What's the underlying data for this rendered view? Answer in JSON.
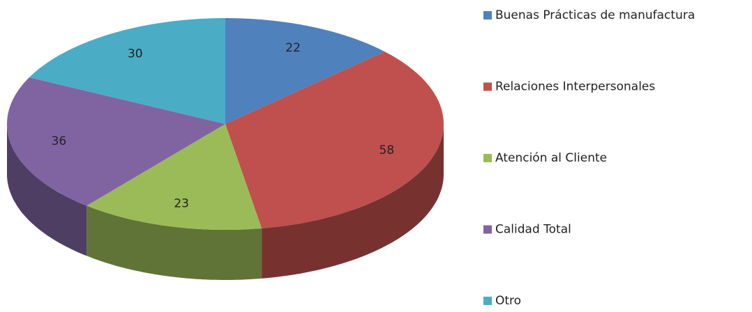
{
  "chart_data": {
    "type": "pie",
    "categories": [
      "Buenas Prácticas de manufactura",
      "Relaciones Interpersonales",
      "Atención al Cliente",
      "Calidad Total",
      "Otro"
    ],
    "values": [
      22,
      58,
      23,
      36,
      30
    ],
    "colors": [
      "#4f81bd",
      "#c0504d",
      "#9bbb59",
      "#8064a2",
      "#4bacc6"
    ],
    "legend": "right"
  }
}
